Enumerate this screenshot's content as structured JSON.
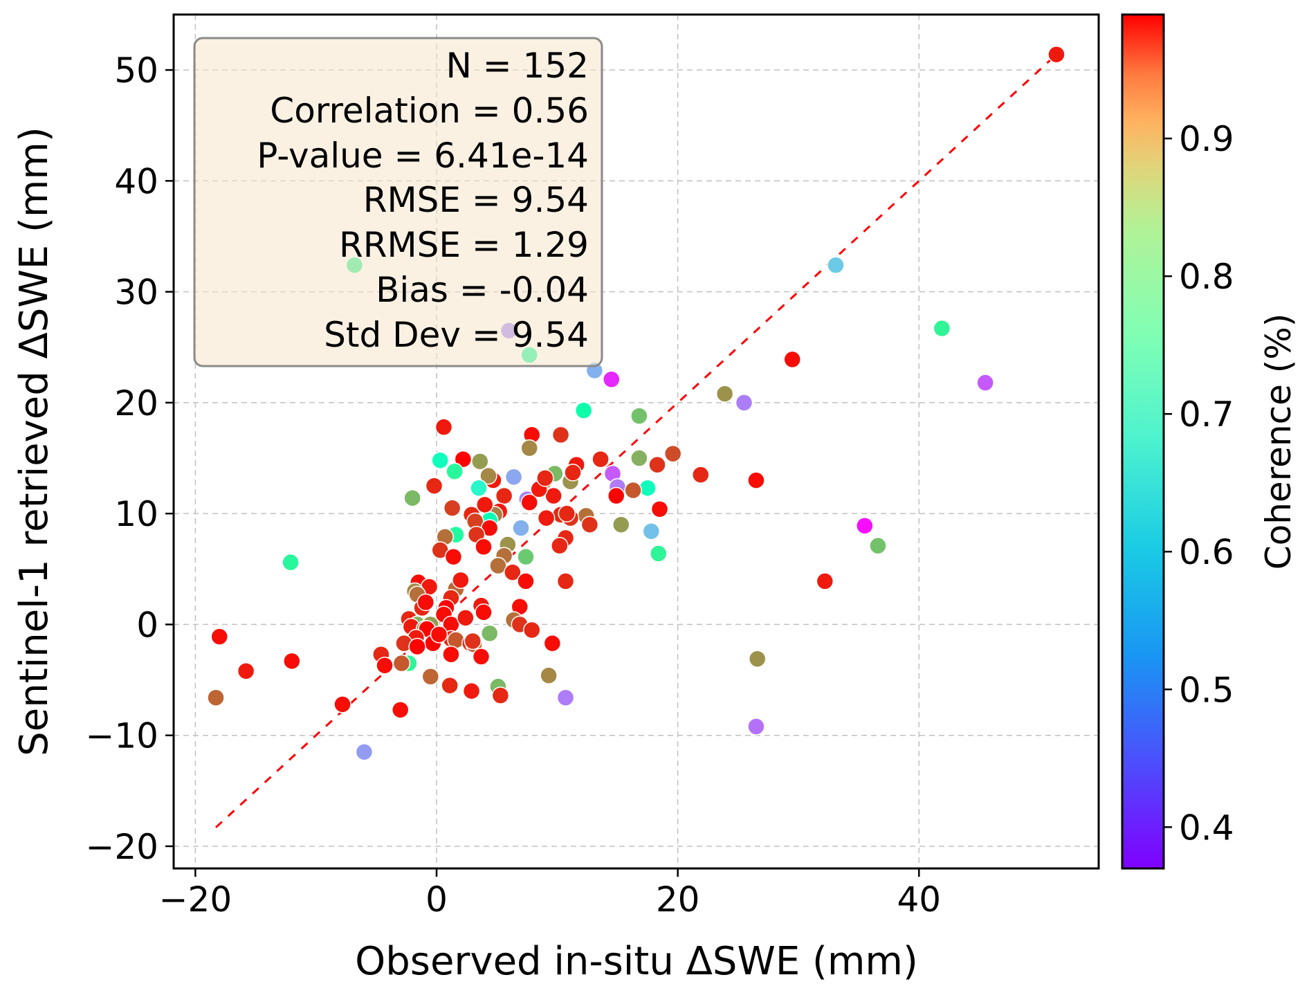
{
  "chart_data": {
    "type": "scatter",
    "title": "",
    "xlabel": "Observed in-situ ΔSWE (mm)",
    "ylabel": "Sentinel-1 retrieved ΔSWE (mm)",
    "xlim": [
      -21.8,
      54.9
    ],
    "ylim": [
      -22.0,
      55.0
    ],
    "xticks": [
      -20,
      0,
      20,
      40
    ],
    "yticks": [
      -20,
      -10,
      0,
      10,
      20,
      30,
      40,
      50
    ],
    "xtick_labels": [
      "−20",
      "0",
      "20",
      "40"
    ],
    "ytick_labels": [
      "−20",
      "−10",
      "0",
      "10",
      "20",
      "30",
      "40",
      "50"
    ],
    "grid": true,
    "reference_line": {
      "type": "1:1",
      "style": "dashed",
      "color": "#ff0000",
      "from": [
        -18.3,
        -18.3
      ],
      "to": [
        51.4,
        51.4
      ]
    },
    "colorbar": {
      "label": "Coherence (%)",
      "colormap": "rainbow",
      "range": [
        0.37,
        0.99
      ],
      "ticks": [
        0.4,
        0.5,
        0.6,
        0.7,
        0.8,
        0.9
      ],
      "tick_labels": [
        "0.4",
        "0.5",
        "0.6",
        "0.7",
        "0.8",
        "0.9"
      ]
    },
    "stats_box": {
      "position": "top-left",
      "lines": [
        "N = 152",
        "Correlation = 0.56",
        "P-value = 6.41e-14",
        "RMSE = 9.54",
        "RRMSE = 1.29",
        "Bias = -0.04",
        "Std Dev = 9.54"
      ]
    },
    "points": [
      [
        51.4,
        51.4,
        0.97
      ],
      [
        33.1,
        32.4,
        0.55
      ],
      [
        41.9,
        26.7,
        0.74
      ],
      [
        29.5,
        23.9,
        0.98
      ],
      [
        45.5,
        21.8,
        0.44
      ],
      [
        23.9,
        20.8,
        0.87
      ],
      [
        25.5,
        20.0,
        0.47
      ],
      [
        -6.8,
        32.4,
        0.75
      ],
      [
        6.0,
        26.5,
        0.48
      ],
      [
        7.7,
        24.3,
        0.72
      ],
      [
        13.1,
        22.9,
        0.52
      ],
      [
        14.5,
        22.1,
        0.4
      ],
      [
        12.2,
        19.3,
        0.7
      ],
      [
        16.8,
        18.8,
        0.82
      ],
      [
        0.6,
        17.8,
        0.97
      ],
      [
        7.9,
        17.1,
        0.98
      ],
      [
        10.3,
        17.1,
        0.95
      ],
      [
        7.7,
        15.9,
        0.88
      ],
      [
        19.6,
        15.4,
        0.93
      ],
      [
        16.8,
        15.0,
        0.84
      ],
      [
        0.3,
        14.8,
        0.66
      ],
      [
        2.2,
        14.9,
        0.99
      ],
      [
        3.6,
        14.7,
        0.86
      ],
      [
        13.6,
        14.9,
        0.96
      ],
      [
        18.3,
        14.4,
        0.95
      ],
      [
        11.6,
        14.4,
        0.97
      ],
      [
        1.5,
        13.8,
        0.73
      ],
      [
        6.4,
        13.3,
        0.51
      ],
      [
        9.8,
        13.6,
        0.83
      ],
      [
        8.9,
        12.9,
        0.88
      ],
      [
        11.1,
        12.9,
        0.87
      ],
      [
        11.3,
        13.7,
        0.96
      ],
      [
        4.7,
        13.0,
        0.97
      ],
      [
        4.3,
        13.4,
        0.88
      ],
      [
        21.9,
        13.5,
        0.96
      ],
      [
        26.5,
        13.0,
        0.98
      ],
      [
        14.6,
        13.6,
        0.44
      ],
      [
        15.0,
        12.4,
        0.47
      ],
      [
        17.5,
        12.3,
        0.66
      ],
      [
        3.5,
        12.3,
        0.63
      ],
      [
        16.3,
        12.1,
        0.92
      ],
      [
        -0.2,
        12.5,
        0.96
      ],
      [
        -2.0,
        11.4,
        0.83
      ],
      [
        14.9,
        11.6,
        0.99
      ],
      [
        5.6,
        11.6,
        0.96
      ],
      [
        9.7,
        11.6,
        0.97
      ],
      [
        7.5,
        11.3,
        0.48
      ],
      [
        7.7,
        11.0,
        0.98
      ],
      [
        1.3,
        10.5,
        0.94
      ],
      [
        5.2,
        10.2,
        0.97
      ],
      [
        18.5,
        10.4,
        0.98
      ],
      [
        4.8,
        9.9,
        0.89
      ],
      [
        2.9,
        9.9,
        0.96
      ],
      [
        10.3,
        9.9,
        0.96
      ],
      [
        12.4,
        9.8,
        0.9
      ],
      [
        11.1,
        9.6,
        0.95
      ],
      [
        9.1,
        9.6,
        0.97
      ],
      [
        4.4,
        9.4,
        0.68
      ],
      [
        3.2,
        9.3,
        0.94
      ],
      [
        12.7,
        9.0,
        0.95
      ],
      [
        15.3,
        9.0,
        0.86
      ],
      [
        4.4,
        8.7,
        0.98
      ],
      [
        1.6,
        8.1,
        0.72
      ],
      [
        0.7,
        7.9,
        0.9
      ],
      [
        17.8,
        8.4,
        0.54
      ],
      [
        7.0,
        8.7,
        0.52
      ],
      [
        3.3,
        8.1,
        0.95
      ],
      [
        35.5,
        8.9,
        0.38
      ],
      [
        10.7,
        7.8,
        0.96
      ],
      [
        3.9,
        7.0,
        0.98
      ],
      [
        5.9,
        7.2,
        0.87
      ],
      [
        10.2,
        7.1,
        0.96
      ],
      [
        36.6,
        7.1,
        0.82
      ],
      [
        0.3,
        6.7,
        0.95
      ],
      [
        1.4,
        6.1,
        0.98
      ],
      [
        5.6,
        6.2,
        0.9
      ],
      [
        7.4,
        6.1,
        0.81
      ],
      [
        18.4,
        6.4,
        0.74
      ],
      [
        -12.1,
        5.6,
        0.73
      ],
      [
        5.1,
        5.3,
        0.9
      ],
      [
        6.3,
        4.7,
        0.96
      ],
      [
        7.4,
        3.9,
        0.98
      ],
      [
        10.7,
        3.9,
        0.96
      ],
      [
        32.2,
        3.9,
        0.97
      ],
      [
        -1.5,
        3.8,
        0.98
      ],
      [
        -0.6,
        3.4,
        0.97
      ],
      [
        -1.8,
        3.0,
        0.88
      ],
      [
        -1.6,
        2.7,
        0.9
      ],
      [
        1.6,
        3.2,
        0.91
      ],
      [
        1.2,
        2.4,
        0.96
      ],
      [
        3.7,
        1.7,
        0.97
      ],
      [
        6.9,
        1.6,
        0.98
      ],
      [
        0.8,
        1.5,
        0.99
      ],
      [
        3.9,
        1.1,
        0.98
      ],
      [
        0.6,
        0.9,
        0.98
      ],
      [
        -2.3,
        0.5,
        0.96
      ],
      [
        6.4,
        0.4,
        0.9
      ],
      [
        -1.6,
        0.0,
        0.84
      ],
      [
        -0.5,
        0.0,
        0.86
      ],
      [
        1.2,
        0.0,
        0.98
      ],
      [
        6.9,
        0.0,
        0.95
      ],
      [
        -2.1,
        -0.2,
        0.97
      ],
      [
        -1.0,
        -0.4,
        0.87
      ],
      [
        -0.8,
        -0.4,
        0.99
      ],
      [
        7.9,
        -0.5,
        0.96
      ],
      [
        4.4,
        -0.8,
        0.83
      ],
      [
        -1.7,
        -1.2,
        0.97
      ],
      [
        1.2,
        -1.3,
        0.96
      ],
      [
        1.6,
        -1.4,
        0.92
      ],
      [
        -2.7,
        -1.7,
        0.95
      ],
      [
        -18.0,
        -1.1,
        0.98
      ],
      [
        -0.3,
        -1.7,
        0.99
      ],
      [
        9.6,
        -1.7,
        0.98
      ],
      [
        2.8,
        -1.7,
        0.96
      ],
      [
        3.1,
        -1.8,
        0.91
      ],
      [
        -1.6,
        -2.0,
        0.99
      ],
      [
        -4.6,
        -2.7,
        0.96
      ],
      [
        1.2,
        -2.7,
        0.98
      ],
      [
        3.7,
        -2.9,
        0.98
      ],
      [
        26.6,
        -3.1,
        0.87
      ],
      [
        -12.0,
        -3.3,
        0.98
      ],
      [
        -2.3,
        -3.5,
        0.74
      ],
      [
        -2.9,
        -3.5,
        0.92
      ],
      [
        -4.3,
        -3.7,
        0.98
      ],
      [
        -15.8,
        -4.2,
        0.97
      ],
      [
        9.3,
        -4.6,
        0.88
      ],
      [
        -0.5,
        -4.7,
        0.91
      ],
      [
        1.1,
        -5.5,
        0.96
      ],
      [
        5.1,
        -5.6,
        0.83
      ],
      [
        2.9,
        -6.0,
        0.97
      ],
      [
        5.3,
        -6.4,
        0.96
      ],
      [
        -18.3,
        -6.6,
        0.91
      ],
      [
        10.7,
        -6.6,
        0.47
      ],
      [
        -7.8,
        -7.2,
        0.98
      ],
      [
        -3.0,
        -7.7,
        0.98
      ],
      [
        26.5,
        -9.2,
        0.46
      ],
      [
        -6.0,
        -11.5,
        0.5
      ],
      [
        2.0,
        4.0,
        0.97
      ],
      [
        -1.2,
        1.5,
        0.96
      ],
      [
        0.2,
        -0.9,
        0.98
      ],
      [
        3.0,
        -1.5,
        0.95
      ],
      [
        8.5,
        12.2,
        0.97
      ],
      [
        10.8,
        10.0,
        0.96
      ],
      [
        4.0,
        10.8,
        0.97
      ],
      [
        -0.9,
        2.0,
        0.98
      ],
      [
        2.4,
        0.6,
        0.97
      ],
      [
        9.0,
        13.2,
        0.96
      ]
    ]
  }
}
